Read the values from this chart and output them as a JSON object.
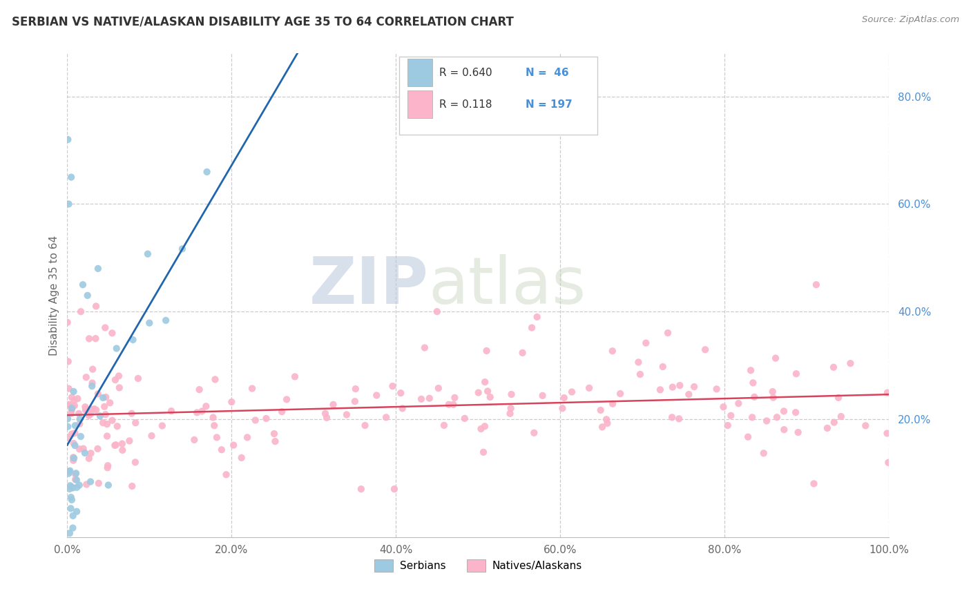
{
  "title": "SERBIAN VS NATIVE/ALASKAN DISABILITY AGE 35 TO 64 CORRELATION CHART",
  "source": "Source: ZipAtlas.com",
  "ylabel": "Disability Age 35 to 64",
  "xlim": [
    0.0,
    1.0
  ],
  "ylim": [
    -0.02,
    0.88
  ],
  "x_tick_labels": [
    "0.0%",
    "20.0%",
    "40.0%",
    "60.0%",
    "80.0%",
    "100.0%"
  ],
  "x_ticks": [
    0.0,
    0.2,
    0.4,
    0.6,
    0.8,
    1.0
  ],
  "y_tick_labels": [
    "20.0%",
    "40.0%",
    "60.0%",
    "80.0%"
  ],
  "y_ticks": [
    0.2,
    0.4,
    0.6,
    0.8
  ],
  "serbian_color": "#9ecae1",
  "native_color": "#fbb4c9",
  "trend_serbian_color": "#2166ac",
  "trend_native_color": "#d6435a",
  "R_serbian": 0.64,
  "N_serbian": 46,
  "R_native": 0.118,
  "N_native": 197,
  "legend_label_serbian": "Serbians",
  "legend_label_native": "Natives/Alaskans",
  "watermark_zip": "ZIP",
  "watermark_atlas": "atlas",
  "background_color": "#ffffff",
  "grid_color": "#cccccc",
  "title_color": "#333333",
  "source_color": "#888888",
  "ylabel_color": "#666666",
  "ytick_color": "#4a90d9",
  "xtick_color": "#666666",
  "legend_text_color": "#333333",
  "legend_n_color": "#4a90d9"
}
